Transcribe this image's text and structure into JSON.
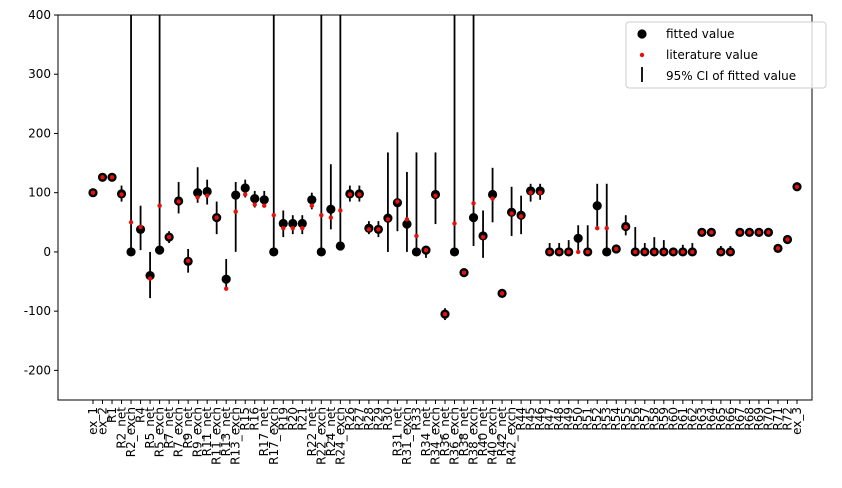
{
  "chart_data": {
    "type": "errorbar_scatter",
    "categories": [
      "ex_1",
      "ex_2",
      "R1",
      "R2_net",
      "R2_exch",
      "R4",
      "R5_net",
      "R5_exch",
      "R7_net",
      "R7_exch",
      "R9_net",
      "R9_exch",
      "R11_net",
      "R11_exch",
      "R13_net",
      "R13_exch",
      "R15",
      "R16",
      "R17_net",
      "R17_exch",
      "R19",
      "R20",
      "R21",
      "R22_net",
      "R22_exch",
      "R24_net",
      "R24_exch",
      "R26",
      "R27",
      "R28",
      "R29",
      "R30",
      "R31_net",
      "R31_exch",
      "R33",
      "R34_net",
      "R34_exch",
      "R36_net",
      "R36_exch",
      "R38_net",
      "R38_exch",
      "R40_net",
      "R40_exch",
      "R42_net",
      "R42_exch",
      "R44",
      "R45",
      "R46",
      "R47",
      "R48",
      "R49",
      "R50",
      "R51",
      "R52",
      "R53",
      "R54",
      "R55",
      "R56",
      "R57",
      "R58",
      "R59",
      "R60",
      "R61",
      "R62",
      "R63",
      "R64",
      "R65",
      "R66",
      "R67",
      "R68",
      "R69",
      "R70",
      "R71",
      "R72",
      "ex_3"
    ],
    "series": [
      {
        "name": "fitted value",
        "color": "#000000",
        "values": [
          100,
          126,
          126,
          98,
          0,
          38,
          -40,
          3,
          25,
          86,
          -16,
          100,
          102,
          58,
          -46,
          96,
          108,
          90,
          88,
          0,
          48,
          48,
          48,
          88,
          0,
          72,
          10,
          98,
          98,
          40,
          38,
          57,
          83,
          47,
          0,
          3,
          97,
          -105,
          0,
          -35,
          58,
          27,
          97,
          -70,
          67,
          62,
          103,
          103,
          0,
          0,
          0,
          23,
          0,
          78,
          0,
          5,
          43,
          0,
          0,
          0,
          0,
          0,
          0,
          0,
          33,
          33,
          0,
          0,
          33,
          33,
          33,
          33,
          6,
          21,
          110
        ]
      },
      {
        "name": "literature value",
        "color": "#e8100c",
        "values": [
          100,
          126,
          126,
          97,
          50,
          42,
          -45,
          78,
          25,
          85,
          -15,
          92,
          95,
          58,
          -62,
          68,
          97,
          80,
          78,
          62,
          40,
          40,
          40,
          78,
          62,
          58,
          70,
          97,
          97,
          38,
          38,
          55,
          85,
          55,
          27,
          3,
          95,
          -105,
          48,
          -35,
          82,
          25,
          90,
          -70,
          65,
          60,
          100,
          100,
          0,
          0,
          0,
          0,
          0,
          40,
          40,
          5,
          42,
          0,
          0,
          0,
          0,
          0,
          0,
          0,
          33,
          33,
          0,
          0,
          33,
          33,
          33,
          33,
          6,
          21,
          110
        ]
      }
    ],
    "ci": {
      "name": "95% CI of fitted value",
      "color": "#000000",
      "low": [
        98,
        124,
        124,
        85,
        0,
        3,
        -78,
        0,
        15,
        65,
        -35,
        83,
        80,
        30,
        -65,
        0,
        92,
        75,
        75,
        0,
        25,
        30,
        30,
        72,
        0,
        38,
        5,
        85,
        85,
        30,
        25,
        0,
        35,
        0,
        0,
        -10,
        47,
        -115,
        0,
        -42,
        10,
        -10,
        50,
        -75,
        27,
        30,
        85,
        88,
        -5,
        -5,
        -5,
        0,
        -5,
        40,
        0,
        0,
        28,
        -5,
        -5,
        -5,
        -5,
        -3,
        -3,
        -5,
        31,
        31,
        -5,
        -5,
        28,
        28,
        28,
        28,
        2,
        16,
        108
      ],
      "high": [
        102,
        128,
        128,
        112,
        1000,
        78,
        0,
        1000,
        35,
        118,
        5,
        143,
        122,
        85,
        -12,
        118,
        122,
        103,
        103,
        1000,
        70,
        62,
        62,
        100,
        1000,
        148,
        1000,
        112,
        112,
        52,
        52,
        168,
        202,
        135,
        168,
        10,
        168,
        -95,
        1000,
        -28,
        1000,
        70,
        142,
        -65,
        110,
        95,
        115,
        115,
        15,
        15,
        20,
        45,
        45,
        115,
        115,
        10,
        62,
        42,
        15,
        25,
        20,
        5,
        12,
        15,
        35,
        35,
        10,
        10,
        38,
        38,
        38,
        38,
        12,
        26,
        112
      ]
    },
    "ylim": [
      -250,
      400
    ],
    "yticks": [
      -200,
      -100,
      0,
      100,
      200,
      300,
      400
    ],
    "legend": "upper right"
  }
}
